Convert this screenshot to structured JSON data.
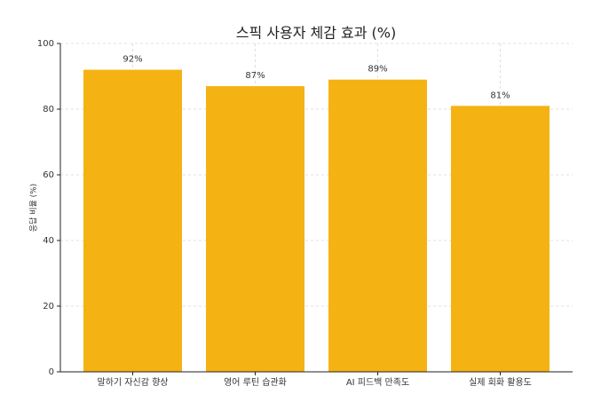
{
  "chart_data": {
    "type": "bar",
    "title": "스픽 사용자 체감 효과 (%)",
    "y_label": "응답 비율 (%)",
    "categories": [
      "말하기 자신감 향상",
      "영어 루틴 습관화",
      "AI 피드백 만족도",
      "실제 회화 활용도"
    ],
    "values": [
      92,
      87,
      89,
      81
    ],
    "value_labels": [
      "92%",
      "87%",
      "89%",
      "81%"
    ],
    "color": "#f5b213",
    "ylim": [
      0,
      100
    ],
    "yticks": [
      0,
      20,
      40,
      60,
      80,
      100
    ],
    "grid": true
  }
}
